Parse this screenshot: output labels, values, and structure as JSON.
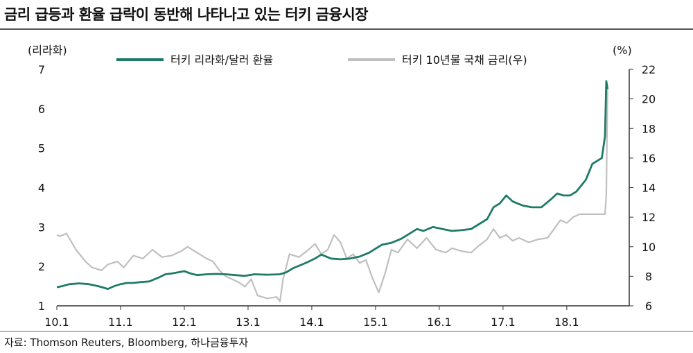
{
  "title": "금리 급등과 환율 급락이 동반해 나타나고 있는 터키 금융시장",
  "source": "자료: Thomson Reuters, Bloomberg, 하나금융투자",
  "chart_data": {
    "type": "line",
    "left_axis": {
      "unit": "(리라화)",
      "ylim": [
        1,
        7
      ],
      "ticks": [
        "1",
        "2",
        "3",
        "4",
        "5",
        "6",
        "7"
      ]
    },
    "right_axis": {
      "unit": "(%)",
      "ylim": [
        6,
        22
      ],
      "ticks": [
        "6",
        "8",
        "10",
        "12",
        "14",
        "16",
        "18",
        "20",
        "22"
      ]
    },
    "x_axis": {
      "ticks": [
        "10.1",
        "11.1",
        "12.1",
        "13.1",
        "14.1",
        "15.1",
        "16.1",
        "17.1",
        "18.1"
      ]
    },
    "legend_placement": "top",
    "series": [
      {
        "name": "터키 리라화/달러 환율",
        "axis": "left",
        "color": "#1f7a68",
        "x": [
          2010.0,
          2010.08,
          2010.2,
          2010.35,
          2010.5,
          2010.65,
          2010.8,
          2010.9,
          2011.0,
          2011.1,
          2011.2,
          2011.3,
          2011.45,
          2011.6,
          2011.7,
          2011.8,
          2011.9,
          2012.0,
          2012.1,
          2012.2,
          2012.35,
          2012.5,
          2012.65,
          2012.8,
          2012.95,
          2013.1,
          2013.3,
          2013.5,
          2013.6,
          2013.7,
          2013.85,
          2013.95,
          2014.05,
          2014.15,
          2014.3,
          2014.45,
          2014.6,
          2014.75,
          2014.9,
          2015.0,
          2015.1,
          2015.25,
          2015.4,
          2015.55,
          2015.65,
          2015.75,
          2015.9,
          2016.05,
          2016.2,
          2016.35,
          2016.5,
          2016.6,
          2016.75,
          2016.85,
          2016.95,
          2017.05,
          2017.15,
          2017.3,
          2017.45,
          2017.6,
          2017.75,
          2017.85,
          2017.95,
          2018.05,
          2018.15,
          2018.3,
          2018.4,
          2018.5,
          2018.55,
          2018.6,
          2018.62,
          2018.64
        ],
        "values": [
          1.47,
          1.5,
          1.55,
          1.57,
          1.55,
          1.5,
          1.43,
          1.5,
          1.55,
          1.58,
          1.58,
          1.6,
          1.62,
          1.72,
          1.8,
          1.82,
          1.85,
          1.88,
          1.82,
          1.78,
          1.8,
          1.81,
          1.8,
          1.78,
          1.76,
          1.8,
          1.79,
          1.8,
          1.85,
          1.95,
          2.05,
          2.12,
          2.2,
          2.3,
          2.2,
          2.18,
          2.2,
          2.25,
          2.35,
          2.45,
          2.55,
          2.6,
          2.7,
          2.85,
          2.95,
          2.9,
          3.0,
          2.95,
          2.9,
          2.92,
          2.95,
          3.05,
          3.2,
          3.5,
          3.6,
          3.8,
          3.65,
          3.55,
          3.5,
          3.5,
          3.7,
          3.85,
          3.8,
          3.8,
          3.9,
          4.2,
          4.6,
          4.7,
          4.75,
          5.3,
          6.7,
          6.5
        ]
      },
      {
        "name": "터키 10년물 국채 금리(우)",
        "axis": "right",
        "color": "#bfbfbf",
        "x": [
          2010.0,
          2010.05,
          2010.15,
          2010.3,
          2010.45,
          2010.55,
          2010.7,
          2010.8,
          2010.95,
          2011.05,
          2011.2,
          2011.35,
          2011.5,
          2011.65,
          2011.8,
          2011.95,
          2012.05,
          2012.2,
          2012.35,
          2012.45,
          2012.55,
          2012.65,
          2012.75,
          2012.85,
          2012.95,
          2013.05,
          2013.15,
          2013.3,
          2013.45,
          2013.5,
          2013.55,
          2013.65,
          2013.8,
          2013.95,
          2014.05,
          2014.15,
          2014.25,
          2014.35,
          2014.45,
          2014.55,
          2014.65,
          2014.75,
          2014.85,
          2014.95,
          2015.05,
          2015.15,
          2015.25,
          2015.35,
          2015.5,
          2015.65,
          2015.8,
          2015.95,
          2016.1,
          2016.2,
          2016.35,
          2016.5,
          2016.6,
          2016.75,
          2016.85,
          2016.95,
          2017.05,
          2017.15,
          2017.25,
          2017.4,
          2017.55,
          2017.7,
          2017.8,
          2017.9,
          2018.0,
          2018.1,
          2018.2,
          2018.3,
          2018.45,
          2018.55,
          2018.6,
          2018.62,
          2018.64
        ],
        "values": [
          10.8,
          10.7,
          10.9,
          9.8,
          9.0,
          8.6,
          8.4,
          8.8,
          9.0,
          8.6,
          9.4,
          9.2,
          9.8,
          9.3,
          9.4,
          9.7,
          10.0,
          9.6,
          9.2,
          9.0,
          8.4,
          8.0,
          7.8,
          7.6,
          7.3,
          7.8,
          6.7,
          6.5,
          6.6,
          6.3,
          7.8,
          9.5,
          9.3,
          9.8,
          10.2,
          9.5,
          9.8,
          10.8,
          10.3,
          9.2,
          9.5,
          8.9,
          9.1,
          7.9,
          6.9,
          8.2,
          9.8,
          9.6,
          10.5,
          9.9,
          10.6,
          9.8,
          9.6,
          9.9,
          9.7,
          9.6,
          10.0,
          10.5,
          11.2,
          10.6,
          10.8,
          10.4,
          10.6,
          10.3,
          10.5,
          10.6,
          11.2,
          11.8,
          11.6,
          12.0,
          12.2,
          12.2,
          12.2,
          12.2,
          12.2,
          13.5,
          20.9
        ]
      }
    ]
  }
}
